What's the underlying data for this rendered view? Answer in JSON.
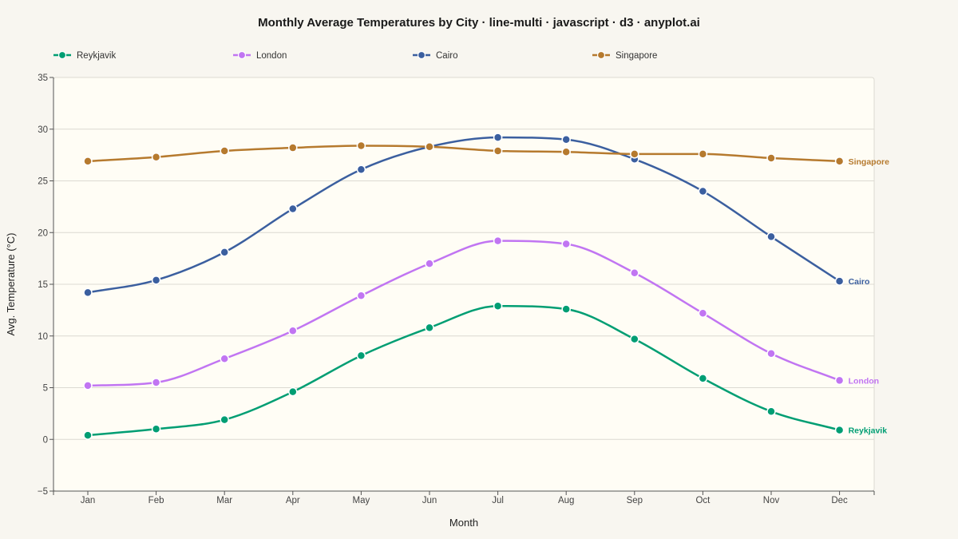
{
  "colors": {
    "page_background": "#f8f6f0",
    "plot_background": "#fffdf5",
    "grid": "#dcdad2",
    "axis": "#555555"
  },
  "chart_data": {
    "type": "line",
    "title": "Monthly Average Temperatures by City · line-multi · javascript · d3 · anyplot.ai",
    "xlabel": "Month",
    "ylabel": "Avg. Temperature (°C)",
    "categories": [
      "Jan",
      "Feb",
      "Mar",
      "Apr",
      "May",
      "Jun",
      "Jul",
      "Aug",
      "Sep",
      "Oct",
      "Nov",
      "Dec"
    ],
    "ylim": [
      -5,
      35
    ],
    "yticks": [
      -5,
      0,
      5,
      10,
      15,
      20,
      25,
      30,
      35
    ],
    "ytick_labels": [
      "−5",
      "0",
      "5",
      "10",
      "15",
      "20",
      "25",
      "30",
      "35"
    ],
    "grid": "horizontal",
    "legend_position": "top",
    "curve": "smooth",
    "series": [
      {
        "name": "Reykjavik",
        "color": "#009e73",
        "values": [
          0.4,
          1.0,
          1.9,
          4.6,
          8.1,
          10.8,
          12.9,
          12.6,
          9.7,
          5.9,
          2.7,
          0.9
        ]
      },
      {
        "name": "London",
        "color": "#c175f2",
        "values": [
          5.2,
          5.5,
          7.8,
          10.5,
          13.9,
          17.0,
          19.2,
          18.9,
          16.1,
          12.2,
          8.3,
          5.7
        ]
      },
      {
        "name": "Cairo",
        "color": "#3b5f9f",
        "values": [
          14.2,
          15.4,
          18.1,
          22.3,
          26.1,
          28.3,
          29.2,
          29.0,
          27.1,
          24.0,
          19.6,
          15.3
        ]
      },
      {
        "name": "Singapore",
        "color": "#b67a2e",
        "values": [
          26.9,
          27.3,
          27.9,
          28.2,
          28.4,
          28.3,
          27.9,
          27.8,
          27.6,
          27.6,
          27.2,
          26.9
        ]
      }
    ]
  }
}
